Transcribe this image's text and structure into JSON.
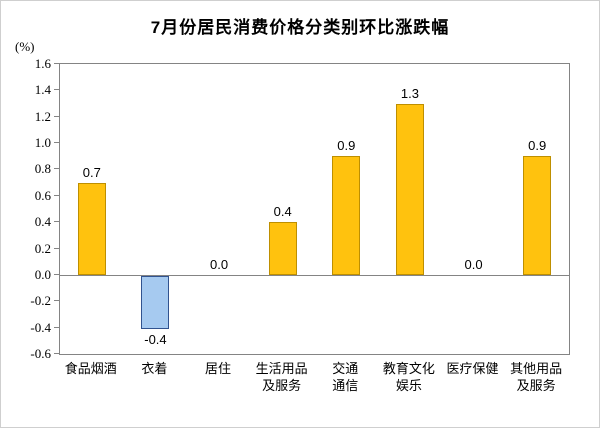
{
  "chart_data": {
    "type": "bar",
    "title": "7月份居民消费价格分类别环比涨跌幅",
    "unit_label": "(%)",
    "categories": [
      "食品烟酒",
      "衣着",
      "居住",
      "生活用品\n及服务",
      "交通\n通信",
      "教育文化\n娱乐",
      "医疗保健",
      "其他用品\n及服务"
    ],
    "values": [
      0.7,
      -0.4,
      0.0,
      0.4,
      0.9,
      1.3,
      0.0,
      0.9
    ],
    "value_labels": [
      "0.7",
      "-0.4",
      "0.0",
      "0.4",
      "0.9",
      "1.3",
      "0.0",
      "0.9"
    ],
    "xlabel": "",
    "ylabel": "(%)",
    "ylim": [
      -0.6,
      1.6
    ],
    "ytick_step": 0.2,
    "yticks": [
      "1.6",
      "1.4",
      "1.2",
      "1.0",
      "0.8",
      "0.6",
      "0.4",
      "0.2",
      "0.0",
      "-0.2",
      "-0.4",
      "-0.6"
    ],
    "grid": false,
    "legend": false,
    "colors": {
      "positive_fill": "#FFC20E",
      "positive_border": "#BE8F00",
      "negative_fill": "#A6CAF0",
      "negative_border": "#31538F",
      "axis_line": "#848484",
      "text": "#000000",
      "background": "#FFFFFF"
    }
  }
}
